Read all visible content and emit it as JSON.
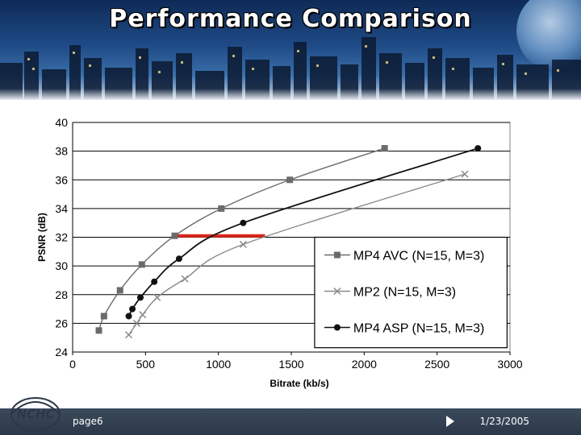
{
  "slide": {
    "title": "Performance Comparison",
    "page_label": "page6",
    "date": "1/23/2005",
    "logo_text": "NCHC"
  },
  "colors": {
    "avc": "#6b6b6b",
    "mp2": "#8a8a8a",
    "asp": "#111111",
    "highlight": "#d8261c"
  },
  "chart_data": {
    "type": "line",
    "title": "",
    "xlabel": "Bitrate (kb/s)",
    "ylabel": "PSNR (dB)",
    "xlim": [
      0,
      3000
    ],
    "ylim": [
      24,
      40
    ],
    "xticks": [
      "0",
      "500",
      "1000",
      "1500",
      "2000",
      "2500",
      "3000"
    ],
    "yticks": [
      "24",
      "26",
      "28",
      "30",
      "32",
      "34",
      "36",
      "38",
      "40"
    ],
    "grid": true,
    "legend_position": "bottom-right",
    "series": [
      {
        "name": "MP4 AVC (N=15, M=3)",
        "marker": "square",
        "points": [
          [
            180,
            25.5
          ],
          [
            215,
            26.5
          ],
          [
            325,
            28.3
          ],
          [
            475,
            30.1
          ],
          [
            700,
            32.1
          ],
          [
            1020,
            34.0
          ],
          [
            1490,
            36.0
          ],
          [
            2140,
            38.2
          ]
        ]
      },
      {
        "name": "MP2 (N=15, M=3)",
        "marker": "x",
        "points": [
          [
            385,
            25.2
          ],
          [
            440,
            26.0
          ],
          [
            480,
            26.6
          ],
          [
            580,
            27.8
          ],
          [
            770,
            29.1
          ],
          [
            1170,
            31.5
          ],
          [
            2690,
            36.4
          ]
        ]
      },
      {
        "name": "MP4 ASP (N=15, M=3)",
        "marker": "circle",
        "points": [
          [
            385,
            26.5
          ],
          [
            410,
            27.0
          ],
          [
            465,
            27.8
          ],
          [
            560,
            28.9
          ],
          [
            730,
            30.5
          ],
          [
            1170,
            33.0
          ],
          [
            2780,
            38.2
          ]
        ]
      }
    ],
    "annotation": {
      "type": "horizontal-segment",
      "y": 32.1,
      "x_start": 700,
      "x_end": 1320
    }
  }
}
